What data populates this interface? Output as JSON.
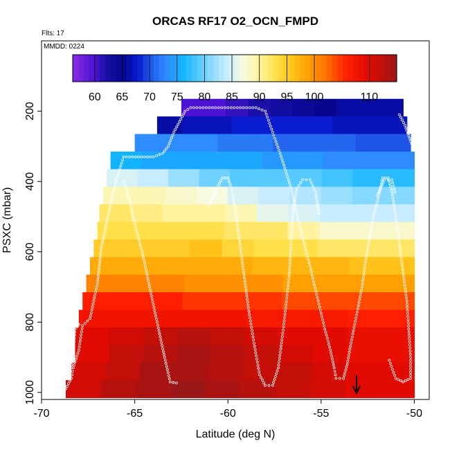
{
  "chart_data": {
    "type": "heatmap",
    "title": "ORCAS RF17 O2_OCN_FMPD",
    "subtitle_flights": "Flts: 17",
    "subtitle_date": "MMDD: 0224",
    "xlabel": "Latitude (deg N)",
    "ylabel": "PSXC (mbar)",
    "xlim": [
      -70,
      -49.2
    ],
    "ylim": [
      1020,
      0
    ],
    "xticks": [
      -70,
      -65,
      -60,
      -55,
      -50
    ],
    "xtick_labels": [
      "-70",
      "-65",
      "-60",
      "-55",
      "-50"
    ],
    "yticks": [
      200,
      400,
      600,
      800,
      1000
    ],
    "ytick_labels": [
      "200",
      "400",
      "600",
      "800",
      "1000"
    ],
    "colorbar": {
      "range": [
        56,
        115
      ],
      "ticks": [
        60,
        65,
        70,
        75,
        80,
        85,
        90,
        95,
        100,
        110
      ],
      "tick_labels": [
        "60",
        "65",
        "70",
        "75",
        "80",
        "85",
        "90",
        "95",
        "100",
        "110"
      ],
      "stops": [
        {
          "v": 56,
          "c": "#8a2be2"
        },
        {
          "v": 60,
          "c": "#4b12d4"
        },
        {
          "v": 62,
          "c": "#1a0fa8"
        },
        {
          "v": 65,
          "c": "#06068f"
        },
        {
          "v": 68,
          "c": "#0a1ccf"
        },
        {
          "v": 70,
          "c": "#1e55e6"
        },
        {
          "v": 73,
          "c": "#2f8cff"
        },
        {
          "v": 76,
          "c": "#12b4ff"
        },
        {
          "v": 80,
          "c": "#6ed1ff"
        },
        {
          "v": 84,
          "c": "#c8ecff"
        },
        {
          "v": 87,
          "c": "#f6fbe0"
        },
        {
          "v": 90,
          "c": "#fff3a0"
        },
        {
          "v": 93,
          "c": "#ffe04a"
        },
        {
          "v": 96,
          "c": "#ffc21a"
        },
        {
          "v": 99,
          "c": "#ff9f00"
        },
        {
          "v": 102,
          "c": "#ff7400"
        },
        {
          "v": 106,
          "c": "#ff1e00"
        },
        {
          "v": 110,
          "c": "#e00a00"
        },
        {
          "v": 115,
          "c": "#9b1616"
        }
      ]
    },
    "rows": [
      {
        "p": 190,
        "lat_min": -62.5,
        "lat_max": -50.6,
        "v": [
          60,
          60,
          61,
          62,
          63,
          64,
          65,
          66,
          66,
          66
        ]
      },
      {
        "p": 240,
        "lat_min": -63.8,
        "lat_max": -50.4,
        "v": [
          66,
          67,
          67,
          68,
          68,
          68,
          68,
          67,
          67,
          67
        ]
      },
      {
        "p": 290,
        "lat_min": -65.0,
        "lat_max": -50.2,
        "v": [
          73,
          73,
          73,
          72,
          72,
          71,
          71,
          71,
          70,
          70
        ]
      },
      {
        "p": 340,
        "lat_min": -66.3,
        "lat_max": -50.0,
        "v": [
          76,
          75,
          75,
          75,
          75,
          74,
          74,
          73,
          73,
          73
        ]
      },
      {
        "p": 390,
        "lat_min": -66.5,
        "lat_max": -50.0,
        "v": [
          85,
          84,
          82,
          80,
          79,
          79,
          79,
          78,
          77,
          77
        ]
      },
      {
        "p": 440,
        "lat_min": -66.7,
        "lat_max": -50.0,
        "v": [
          89,
          89,
          88,
          87,
          85,
          84,
          83,
          82,
          81,
          81
        ]
      },
      {
        "p": 490,
        "lat_min": -66.9,
        "lat_max": -50.0,
        "v": [
          92,
          91,
          90,
          90,
          89,
          86,
          85,
          84,
          84,
          84
        ]
      },
      {
        "p": 540,
        "lat_min": -67.0,
        "lat_max": -50.0,
        "v": [
          93,
          93,
          93,
          93,
          92,
          92,
          90,
          88,
          88,
          88
        ]
      },
      {
        "p": 590,
        "lat_min": -67.2,
        "lat_max": -50.0,
        "v": [
          95,
          95,
          95,
          96,
          94,
          93,
          93,
          92,
          92,
          92
        ]
      },
      {
        "p": 640,
        "lat_min": -67.4,
        "lat_max": -50.0,
        "v": [
          98,
          98,
          98,
          98,
          98,
          97,
          97,
          97,
          96,
          96
        ]
      },
      {
        "p": 690,
        "lat_min": -67.6,
        "lat_max": -50.0,
        "v": [
          101,
          101,
          101,
          100,
          100,
          100,
          99,
          99,
          99,
          99
        ]
      },
      {
        "p": 740,
        "lat_min": -67.8,
        "lat_max": -50.0,
        "v": [
          106,
          106,
          106,
          105,
          105,
          105,
          104,
          104,
          104,
          104
        ]
      },
      {
        "p": 790,
        "lat_min": -68.0,
        "lat_max": -50.0,
        "v": [
          108,
          108,
          108,
          108,
          108,
          107,
          107,
          107,
          106,
          106
        ]
      },
      {
        "p": 840,
        "lat_min": -68.2,
        "lat_max": -50.0,
        "v": [
          110,
          111,
          112,
          113,
          112,
          111,
          110,
          110,
          109,
          109
        ]
      },
      {
        "p": 890,
        "lat_min": -68.2,
        "lat_max": -50.0,
        "v": [
          110,
          112,
          113,
          114,
          113,
          112,
          111,
          110,
          109,
          109
        ]
      },
      {
        "p": 940,
        "lat_min": -68.4,
        "lat_max": -50.0,
        "v": [
          111,
          112,
          114,
          114,
          113,
          112,
          112,
          111,
          110,
          110
        ]
      },
      {
        "p": 990,
        "lat_min": -68.7,
        "lat_max": -50.0,
        "v": [
          111,
          113,
          114,
          115,
          114,
          113,
          112,
          111,
          110,
          110
        ]
      }
    ],
    "flight_track": [
      [
        -68.7,
        990
      ],
      [
        -68.4,
        960
      ],
      [
        -68.3,
        930
      ],
      [
        -68.0,
        880
      ],
      [
        -67.8,
        810
      ],
      [
        -67.4,
        790
      ],
      [
        -67.2,
        740
      ],
      [
        -67.0,
        690
      ],
      [
        -66.9,
        640
      ],
      [
        -66.8,
        590
      ],
      [
        -66.6,
        540
      ],
      [
        -66.4,
        490
      ],
      [
        -66.2,
        440
      ],
      [
        -66.0,
        400
      ],
      [
        -65.6,
        330
      ],
      [
        -64.0,
        330
      ],
      [
        -63.5,
        320
      ],
      [
        -63.2,
        300
      ],
      [
        -62.9,
        260
      ],
      [
        -62.6,
        230
      ],
      [
        -62.3,
        200
      ],
      [
        -62.0,
        190
      ],
      [
        -58.5,
        190
      ],
      [
        -58.0,
        200
      ],
      [
        -57.6,
        260
      ],
      [
        -57.2,
        320
      ],
      [
        -56.9,
        370
      ],
      [
        -56.6,
        420
      ],
      [
        -56.4,
        470
      ],
      [
        -56.0,
        560
      ],
      [
        -55.6,
        640
      ],
      [
        -55.2,
        730
      ],
      [
        -54.8,
        820
      ],
      [
        -54.5,
        880
      ],
      [
        -54.3,
        930
      ],
      [
        -54.2,
        960
      ],
      [
        -53.8,
        960
      ],
      [
        -53.6,
        920
      ],
      [
        -53.4,
        860
      ],
      [
        -53.1,
        780
      ],
      [
        -52.8,
        700
      ],
      [
        -52.6,
        620
      ],
      [
        -52.4,
        560
      ],
      [
        -52.2,
        500
      ],
      [
        -51.9,
        440
      ],
      [
        -51.7,
        390
      ],
      [
        -51.4,
        390
      ],
      [
        -51.2,
        430
      ],
      [
        -51.0,
        500
      ],
      [
        -50.8,
        580
      ],
      [
        -50.6,
        660
      ],
      [
        -50.4,
        740
      ],
      [
        -50.3,
        820
      ],
      [
        -50.2,
        900
      ],
      [
        -50.2,
        960
      ],
      [
        -50.6,
        970
      ],
      [
        -51.0,
        960
      ],
      [
        -51.4,
        900
      ]
    ],
    "track_segments_extra": [
      [
        [
          -68.4,
          930
        ],
        [
          -68.3,
          880
        ],
        [
          -68.2,
          820
        ],
        [
          -67.9,
          800
        ]
      ],
      [
        [
          -65.6,
          400
        ],
        [
          -65.3,
          450
        ],
        [
          -65.0,
          520
        ],
        [
          -64.6,
          600
        ],
        [
          -64.2,
          700
        ],
        [
          -63.8,
          800
        ],
        [
          -63.4,
          900
        ],
        [
          -63.1,
          970
        ],
        [
          -62.6,
          975
        ]
      ],
      [
        [
          -61.0,
          470
        ],
        [
          -60.8,
          440
        ],
        [
          -60.6,
          420
        ],
        [
          -60.3,
          390
        ],
        [
          -60.0,
          390
        ],
        [
          -59.8,
          420
        ],
        [
          -59.6,
          480
        ],
        [
          -59.4,
          560
        ],
        [
          -59.2,
          640
        ],
        [
          -58.9,
          760
        ],
        [
          -58.6,
          860
        ],
        [
          -58.3,
          950
        ],
        [
          -58.0,
          980
        ],
        [
          -57.6,
          980
        ],
        [
          -57.3,
          930
        ],
        [
          -57.1,
          850
        ],
        [
          -56.9,
          760
        ],
        [
          -56.7,
          660
        ],
        [
          -56.6,
          560
        ],
        [
          -56.5,
          480
        ],
        [
          -56.3,
          420
        ],
        [
          -56.0,
          395
        ],
        [
          -55.6,
          395
        ],
        [
          -55.3,
          430
        ],
        [
          -55.1,
          500
        ]
      ],
      [
        [
          -52.0,
          440
        ],
        [
          -51.6,
          395
        ],
        [
          -51.2,
          395
        ],
        [
          -51.0,
          440
        ]
      ],
      [
        [
          -50.8,
          210
        ],
        [
          -50.5,
          240
        ],
        [
          -50.3,
          270
        ],
        [
          -50.1,
          300
        ]
      ]
    ],
    "marker": {
      "lat": -53.1,
      "p": 1000,
      "label": "arrow-down"
    }
  }
}
